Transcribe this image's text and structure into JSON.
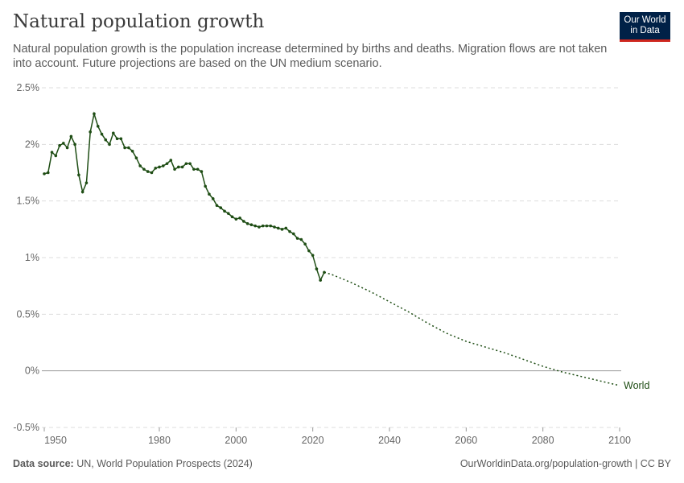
{
  "header": {
    "title": "Natural population growth",
    "subtitle": "Natural population growth is the population increase determined by births and deaths. Migration flows are not taken into account. Future projections are based on the UN medium scenario.",
    "logo": "Our World in Data"
  },
  "footer": {
    "source_label": "Data source:",
    "source": "UN, World Population Prospects (2024)",
    "url": "OurWorldinData.org/population-growth | CC BY"
  },
  "colors": {
    "line": "#1e4d14",
    "grid": "#dddddd",
    "zero": "#999999"
  },
  "chart_data": {
    "type": "line",
    "title": "Natural population growth",
    "xlim": [
      1950,
      2100
    ],
    "ylim": [
      -0.5,
      2.5
    ],
    "yticks": [
      {
        "v": -0.5,
        "label": "-0.5%"
      },
      {
        "v": 0,
        "label": "0%"
      },
      {
        "v": 0.5,
        "label": "0.5%"
      },
      {
        "v": 1,
        "label": "1%"
      },
      {
        "v": 1.5,
        "label": "1.5%"
      },
      {
        "v": 2,
        "label": "2%"
      },
      {
        "v": 2.5,
        "label": "2.5%"
      }
    ],
    "xticks": [
      1950,
      1980,
      2000,
      2020,
      2040,
      2060,
      2080,
      2100
    ],
    "grid": true,
    "series": [
      {
        "name": "World",
        "historical": {
          "x": [
            1950,
            1951,
            1952,
            1953,
            1954,
            1955,
            1956,
            1957,
            1958,
            1959,
            1960,
            1961,
            1962,
            1963,
            1964,
            1965,
            1966,
            1967,
            1968,
            1969,
            1970,
            1971,
            1972,
            1973,
            1974,
            1975,
            1976,
            1977,
            1978,
            1979,
            1980,
            1981,
            1982,
            1983,
            1984,
            1985,
            1986,
            1987,
            1988,
            1989,
            1990,
            1991,
            1992,
            1993,
            1994,
            1995,
            1996,
            1997,
            1998,
            1999,
            2000,
            2001,
            2002,
            2003,
            2004,
            2005,
            2006,
            2007,
            2008,
            2009,
            2010,
            2011,
            2012,
            2013,
            2014,
            2015,
            2016,
            2017,
            2018,
            2019,
            2020,
            2021,
            2022,
            2023
          ],
          "y": [
            1.74,
            1.75,
            1.93,
            1.9,
            1.99,
            2.01,
            1.97,
            2.07,
            2.0,
            1.73,
            1.58,
            1.66,
            2.11,
            2.27,
            2.16,
            2.09,
            2.04,
            2.0,
            2.1,
            2.05,
            2.05,
            1.97,
            1.97,
            1.94,
            1.88,
            1.81,
            1.78,
            1.76,
            1.75,
            1.79,
            1.8,
            1.81,
            1.83,
            1.86,
            1.78,
            1.8,
            1.8,
            1.83,
            1.83,
            1.78,
            1.78,
            1.76,
            1.63,
            1.56,
            1.52,
            1.46,
            1.44,
            1.41,
            1.39,
            1.36,
            1.34,
            1.35,
            1.32,
            1.3,
            1.29,
            1.28,
            1.27,
            1.28,
            1.28,
            1.28,
            1.27,
            1.26,
            1.25,
            1.26,
            1.23,
            1.21,
            1.17,
            1.16,
            1.12,
            1.06,
            1.02,
            0.9,
            0.8,
            0.87
          ]
        },
        "projection": {
          "x": [
            2023,
            2025,
            2030,
            2035,
            2040,
            2045,
            2050,
            2055,
            2060,
            2065,
            2070,
            2075,
            2080,
            2085,
            2090,
            2095,
            2100
          ],
          "y": [
            0.87,
            0.85,
            0.78,
            0.7,
            0.61,
            0.52,
            0.42,
            0.33,
            0.26,
            0.21,
            0.16,
            0.1,
            0.04,
            -0.01,
            -0.05,
            -0.09,
            -0.13
          ]
        }
      }
    ]
  }
}
